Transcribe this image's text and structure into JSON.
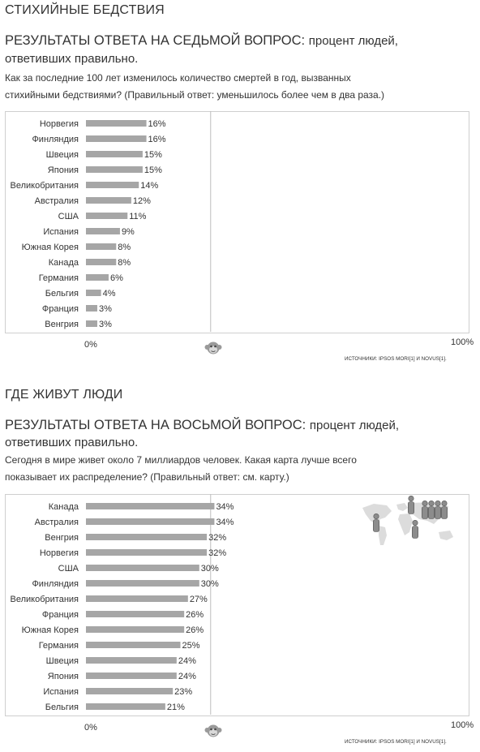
{
  "sections": [
    {
      "heading": "СТИХИЙНЫЕ БЕДСТВИЯ",
      "title_caps": "РЕЗУЛЬТАТЫ ОТВЕТА НА СЕДЬМОЙ ВОПРОС:",
      "title_rest": "процент людей,",
      "title_line2": "ответивших правильно.",
      "question_line1": "Как за последние 100 лет изменилось количество смертей в год, вызванных",
      "question_line2": "стихийными бедствиями? (Правильный ответ: уменьшилось более чем в два раза.)",
      "axis_min_label": "0%",
      "axis_max_label": "100%",
      "source": "ИСТОЧНИКИ: IPSOS MORI[1] И NOVUS[1]."
    },
    {
      "heading": "ГДЕ ЖИВУТ ЛЮДИ",
      "title_caps": "РЕЗУЛЬТАТЫ ОТВЕТА НА ВОСЬМОЙ ВОПРОС:",
      "title_rest": "процент людей,",
      "title_line2": "ответивших правильно.",
      "question_line1": "Сегодня в мире живет около 7 миллиардов человек. Какая карта лучше всего",
      "question_line2": "показывает их распределение? (Правильный ответ: см. карту.)",
      "axis_min_label": "0%",
      "axis_max_label": "100%",
      "source": "ИСТОЧНИКИ: IPSOS MORI[1] И NOVUS[1]."
    }
  ],
  "colors": {
    "bar": "#a6a6a6",
    "reference_line": "#bdbdbd",
    "border": "#cfcfcf",
    "text": "#333333",
    "map": "#dcdcdc"
  },
  "icons": [
    "chimp-icon",
    "world-map-icon",
    "person-icon"
  ],
  "chart_data": [
    {
      "type": "bar",
      "orientation": "horizontal",
      "categories": [
        "Норвегия",
        "Финляндия",
        "Швеция",
        "Япония",
        "Великобритания",
        "Австралия",
        "США",
        "Испания",
        "Южная Корея",
        "Канада",
        "Германия",
        "Бельгия",
        "Франция",
        "Венгрия"
      ],
      "values": [
        16,
        16,
        15,
        15,
        14,
        12,
        11,
        9,
        8,
        8,
        6,
        4,
        3,
        3
      ],
      "value_labels": [
        "16%",
        "16%",
        "15%",
        "15%",
        "14%",
        "12%",
        "11%",
        "9%",
        "8%",
        "8%",
        "6%",
        "4%",
        "3%",
        "3%"
      ],
      "xlim": [
        0,
        100
      ],
      "reference_value": 33,
      "grid": false
    },
    {
      "type": "bar",
      "orientation": "horizontal",
      "categories": [
        "Канада",
        "Австралия",
        "Венгрия",
        "Норвегия",
        "США",
        "Финляндия",
        "Великобритания",
        "Франция",
        "Южная Корея",
        "Германия",
        "Швеция",
        "Япония",
        "Испания",
        "Бельгия"
      ],
      "values": [
        34,
        34,
        32,
        32,
        30,
        30,
        27,
        26,
        26,
        25,
        24,
        24,
        23,
        21
      ],
      "value_labels": [
        "34%",
        "34%",
        "32%",
        "32%",
        "30%",
        "30%",
        "27%",
        "26%",
        "26%",
        "25%",
        "24%",
        "24%",
        "23%",
        "21%"
      ],
      "xlim": [
        0,
        100
      ],
      "reference_value": 33,
      "grid": false
    }
  ]
}
